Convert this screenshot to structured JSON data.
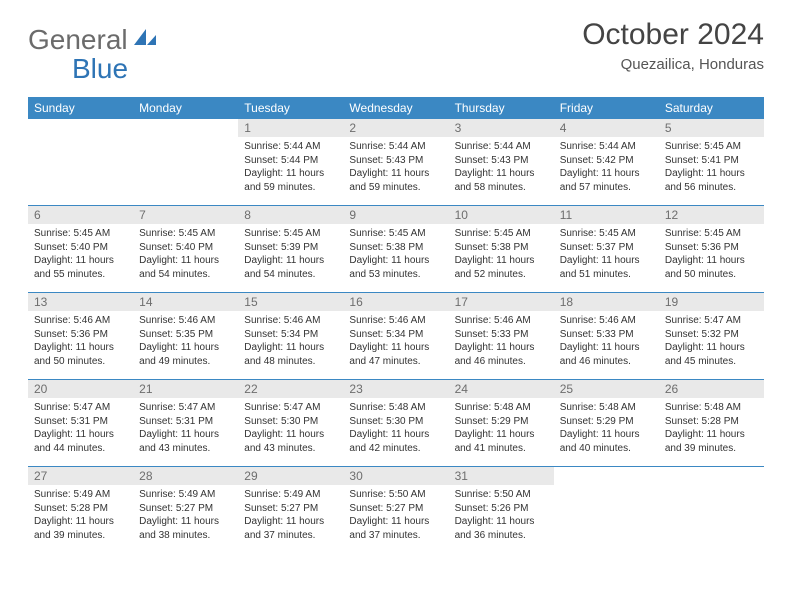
{
  "logo": {
    "text1": "General",
    "text2": "Blue"
  },
  "title": "October 2024",
  "location": "Quezailica, Honduras",
  "accent_color": "#3b88c3",
  "daynum_bg": "#e9e9e9",
  "day_headers": [
    "Sunday",
    "Monday",
    "Tuesday",
    "Wednesday",
    "Thursday",
    "Friday",
    "Saturday"
  ],
  "weeks": [
    [
      null,
      null,
      {
        "n": "1",
        "sr": "5:44 AM",
        "ss": "5:44 PM",
        "dl": "11 hours and 59 minutes."
      },
      {
        "n": "2",
        "sr": "5:44 AM",
        "ss": "5:43 PM",
        "dl": "11 hours and 59 minutes."
      },
      {
        "n": "3",
        "sr": "5:44 AM",
        "ss": "5:43 PM",
        "dl": "11 hours and 58 minutes."
      },
      {
        "n": "4",
        "sr": "5:44 AM",
        "ss": "5:42 PM",
        "dl": "11 hours and 57 minutes."
      },
      {
        "n": "5",
        "sr": "5:45 AM",
        "ss": "5:41 PM",
        "dl": "11 hours and 56 minutes."
      }
    ],
    [
      {
        "n": "6",
        "sr": "5:45 AM",
        "ss": "5:40 PM",
        "dl": "11 hours and 55 minutes."
      },
      {
        "n": "7",
        "sr": "5:45 AM",
        "ss": "5:40 PM",
        "dl": "11 hours and 54 minutes."
      },
      {
        "n": "8",
        "sr": "5:45 AM",
        "ss": "5:39 PM",
        "dl": "11 hours and 54 minutes."
      },
      {
        "n": "9",
        "sr": "5:45 AM",
        "ss": "5:38 PM",
        "dl": "11 hours and 53 minutes."
      },
      {
        "n": "10",
        "sr": "5:45 AM",
        "ss": "5:38 PM",
        "dl": "11 hours and 52 minutes."
      },
      {
        "n": "11",
        "sr": "5:45 AM",
        "ss": "5:37 PM",
        "dl": "11 hours and 51 minutes."
      },
      {
        "n": "12",
        "sr": "5:45 AM",
        "ss": "5:36 PM",
        "dl": "11 hours and 50 minutes."
      }
    ],
    [
      {
        "n": "13",
        "sr": "5:46 AM",
        "ss": "5:36 PM",
        "dl": "11 hours and 50 minutes."
      },
      {
        "n": "14",
        "sr": "5:46 AM",
        "ss": "5:35 PM",
        "dl": "11 hours and 49 minutes."
      },
      {
        "n": "15",
        "sr": "5:46 AM",
        "ss": "5:34 PM",
        "dl": "11 hours and 48 minutes."
      },
      {
        "n": "16",
        "sr": "5:46 AM",
        "ss": "5:34 PM",
        "dl": "11 hours and 47 minutes."
      },
      {
        "n": "17",
        "sr": "5:46 AM",
        "ss": "5:33 PM",
        "dl": "11 hours and 46 minutes."
      },
      {
        "n": "18",
        "sr": "5:46 AM",
        "ss": "5:33 PM",
        "dl": "11 hours and 46 minutes."
      },
      {
        "n": "19",
        "sr": "5:47 AM",
        "ss": "5:32 PM",
        "dl": "11 hours and 45 minutes."
      }
    ],
    [
      {
        "n": "20",
        "sr": "5:47 AM",
        "ss": "5:31 PM",
        "dl": "11 hours and 44 minutes."
      },
      {
        "n": "21",
        "sr": "5:47 AM",
        "ss": "5:31 PM",
        "dl": "11 hours and 43 minutes."
      },
      {
        "n": "22",
        "sr": "5:47 AM",
        "ss": "5:30 PM",
        "dl": "11 hours and 43 minutes."
      },
      {
        "n": "23",
        "sr": "5:48 AM",
        "ss": "5:30 PM",
        "dl": "11 hours and 42 minutes."
      },
      {
        "n": "24",
        "sr": "5:48 AM",
        "ss": "5:29 PM",
        "dl": "11 hours and 41 minutes."
      },
      {
        "n": "25",
        "sr": "5:48 AM",
        "ss": "5:29 PM",
        "dl": "11 hours and 40 minutes."
      },
      {
        "n": "26",
        "sr": "5:48 AM",
        "ss": "5:28 PM",
        "dl": "11 hours and 39 minutes."
      }
    ],
    [
      {
        "n": "27",
        "sr": "5:49 AM",
        "ss": "5:28 PM",
        "dl": "11 hours and 39 minutes."
      },
      {
        "n": "28",
        "sr": "5:49 AM",
        "ss": "5:27 PM",
        "dl": "11 hours and 38 minutes."
      },
      {
        "n": "29",
        "sr": "5:49 AM",
        "ss": "5:27 PM",
        "dl": "11 hours and 37 minutes."
      },
      {
        "n": "30",
        "sr": "5:50 AM",
        "ss": "5:27 PM",
        "dl": "11 hours and 37 minutes."
      },
      {
        "n": "31",
        "sr": "5:50 AM",
        "ss": "5:26 PM",
        "dl": "11 hours and 36 minutes."
      },
      null,
      null
    ]
  ],
  "labels": {
    "sunrise": "Sunrise:",
    "sunset": "Sunset:",
    "daylight": "Daylight:"
  }
}
